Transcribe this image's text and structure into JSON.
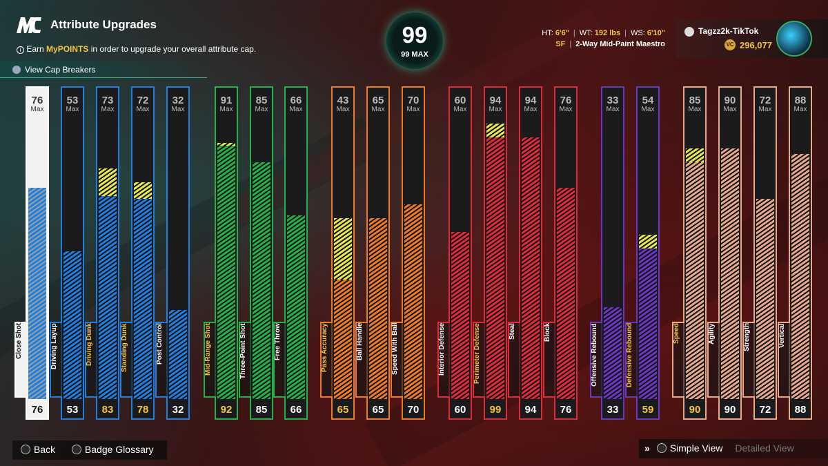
{
  "header": {
    "logo": "MC",
    "title": "Attribute Upgrades",
    "info_icon": "info-icon",
    "info_prefix": "Earn ",
    "info_highlight": "MyPOINTS",
    "info_suffix": " in order to upgrade your overall attribute cap.",
    "cap_breakers_label": "View Cap Breakers"
  },
  "overall": {
    "value": "99",
    "max_label": "99 MAX"
  },
  "player": {
    "ht_label": "HT:",
    "ht": "6'6\"",
    "wt_label": "WT:",
    "wt": "192 lbs",
    "ws_label": "WS:",
    "ws": "6'10\"",
    "position": "SF",
    "archetype": "2-Way Mid-Paint Maestro",
    "gamertag": "Tagzz2k-TikTok",
    "vc_icon_label": "VC",
    "vc": "296,077"
  },
  "colors": {
    "inside": "#1e7fe0",
    "shooting": "#22b24a",
    "playmaking": "#ef7a22",
    "defense": "#e02a3a",
    "rebounding": "#6a37c2",
    "physicals": "#e8a98a",
    "close": "#1e7fe0",
    "boost": "#e8e84a",
    "gold": "#f5c542"
  },
  "max_label": "Max",
  "attributes": [
    {
      "name": "Close Shot",
      "group": "close",
      "cap": 76,
      "value": 76,
      "base": 76,
      "boosted": false
    },
    {
      "name": "Driving Layup",
      "group": "inside",
      "cap": 53,
      "value": 53,
      "base": 53,
      "boosted": false
    },
    {
      "name": "Driving Dunk",
      "group": "inside",
      "cap": 73,
      "value": 83,
      "base": 73,
      "boosted": true
    },
    {
      "name": "Standing Dunk",
      "group": "inside",
      "cap": 72,
      "value": 78,
      "base": 72,
      "boosted": true
    },
    {
      "name": "Post Control",
      "group": "inside",
      "cap": 32,
      "value": 32,
      "base": 32,
      "boosted": false
    },
    {
      "name": "Mid-Range Shot",
      "group": "shooting",
      "cap": 91,
      "value": 92,
      "base": 91,
      "boosted": true
    },
    {
      "name": "Three-Point Shot",
      "group": "shooting",
      "cap": 85,
      "value": 85,
      "base": 85,
      "boosted": false
    },
    {
      "name": "Free Throw",
      "group": "shooting",
      "cap": 66,
      "value": 66,
      "base": 66,
      "boosted": false
    },
    {
      "name": "Pass Accuracy",
      "group": "playmaking",
      "cap": 43,
      "value": 65,
      "base": 43,
      "boosted": true
    },
    {
      "name": "Ball Handle",
      "group": "playmaking",
      "cap": 65,
      "value": 65,
      "base": 65,
      "boosted": false
    },
    {
      "name": "Speed With Ball",
      "group": "playmaking",
      "cap": 70,
      "value": 70,
      "base": 70,
      "boosted": false
    },
    {
      "name": "Interior Defense",
      "group": "defense",
      "cap": 60,
      "value": 60,
      "base": 60,
      "boosted": false
    },
    {
      "name": "Perimeter Defense",
      "group": "defense",
      "cap": 94,
      "value": 99,
      "base": 94,
      "boosted": true
    },
    {
      "name": "Steal",
      "group": "defense",
      "cap": 94,
      "value": 94,
      "base": 94,
      "boosted": false
    },
    {
      "name": "Block",
      "group": "defense",
      "cap": 76,
      "value": 76,
      "base": 76,
      "boosted": false
    },
    {
      "name": "Offensive Rebound",
      "group": "rebounding",
      "cap": 33,
      "value": 33,
      "base": 33,
      "boosted": false
    },
    {
      "name": "Defensive Rebound",
      "group": "rebounding",
      "cap": 54,
      "value": 59,
      "base": 54,
      "boosted": true
    },
    {
      "name": "Speed",
      "group": "physicals",
      "cap": 85,
      "value": 90,
      "base": 85,
      "boosted": true
    },
    {
      "name": "Agility",
      "group": "physicals",
      "cap": 90,
      "value": 90,
      "base": 90,
      "boosted": false
    },
    {
      "name": "Strength",
      "group": "physicals",
      "cap": 72,
      "value": 72,
      "base": 72,
      "boosted": false
    },
    {
      "name": "Vertical",
      "group": "physicals",
      "cap": 88,
      "value": 88,
      "base": 88,
      "boosted": false
    }
  ],
  "footer": {
    "back_label": "Back",
    "glossary_label": "Badge Glossary",
    "simple_view_label": "Simple View",
    "detailed_view_label": "Detailed View"
  }
}
